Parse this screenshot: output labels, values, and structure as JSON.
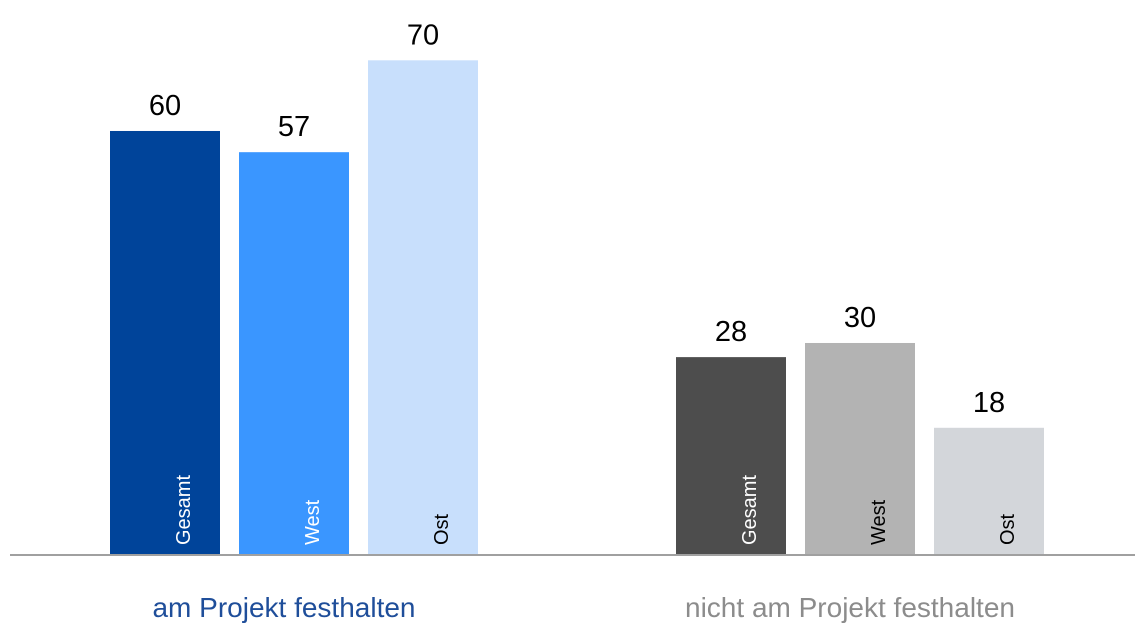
{
  "chart_data": {
    "type": "bar",
    "categories": [
      "am Projekt festhalten",
      "nicht am Projekt festhalten"
    ],
    "category_colors": [
      "#1f4e9a",
      "#8c8c8c"
    ],
    "series": [
      {
        "name": "Gesamt",
        "colors": [
          "#00449a",
          "#4d4d4d"
        ],
        "values": [
          60,
          28
        ]
      },
      {
        "name": "West",
        "colors": [
          "#3a96ff",
          "#b3b3b3"
        ],
        "values": [
          57,
          30
        ]
      },
      {
        "name": "Ost",
        "colors": [
          "#c8dffc",
          "#d3d6da"
        ],
        "values": [
          70,
          18
        ]
      }
    ],
    "ylim": [
      0,
      80
    ]
  }
}
